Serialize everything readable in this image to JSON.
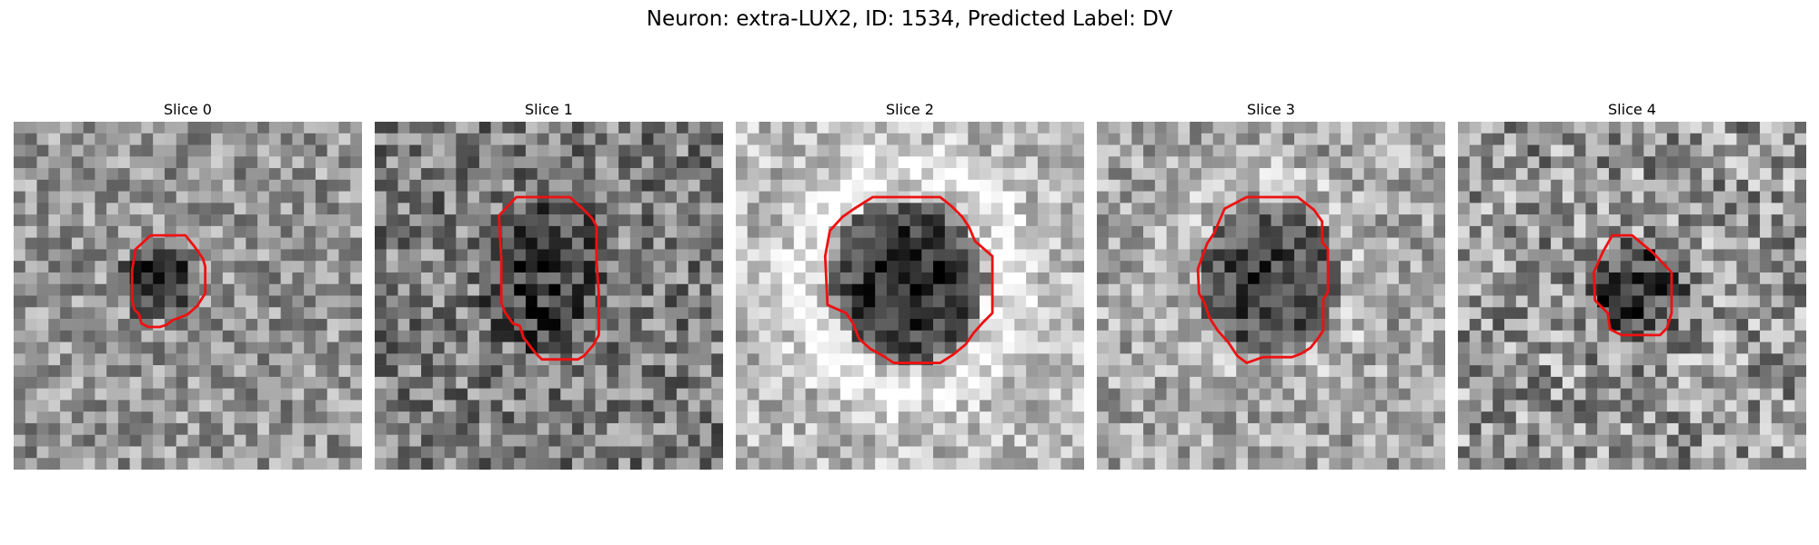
{
  "figure": {
    "title": "Neuron: extra-LUX2, ID: 1534, Predicted Label: DV"
  },
  "panels": [
    {
      "title": "Slice 0",
      "image": "grayscale-noise-patch",
      "contour_color": "#ee1111"
    },
    {
      "title": "Slice 1",
      "image": "grayscale-noise-patch",
      "contour_color": "#ee1111"
    },
    {
      "title": "Slice 2",
      "image": "grayscale-noise-patch",
      "contour_color": "#ee1111"
    },
    {
      "title": "Slice 3",
      "image": "grayscale-noise-patch",
      "contour_color": "#ee1111"
    },
    {
      "title": "Slice 4",
      "image": "grayscale-noise-patch",
      "contour_color": "#ee1111"
    }
  ]
}
